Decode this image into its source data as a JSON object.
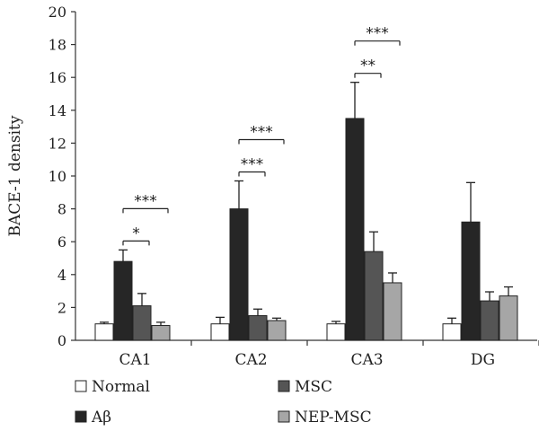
{
  "chart_data": {
    "type": "bar",
    "ylabel": "BACE-1 density",
    "ylim": [
      0,
      20
    ],
    "yticks": [
      0,
      2,
      4,
      6,
      8,
      10,
      12,
      14,
      16,
      18,
      20
    ],
    "categories": [
      "CA1",
      "CA2",
      "CA3",
      "DG"
    ],
    "series": [
      {
        "name": "Normal",
        "color": "#ffffff",
        "values": [
          1.0,
          1.0,
          1.0,
          1.0
        ],
        "errors": [
          0.1,
          0.4,
          0.15,
          0.35
        ]
      },
      {
        "name": "Aβ",
        "color": "#262626",
        "values": [
          4.8,
          8.0,
          13.5,
          7.2
        ],
        "errors": [
          0.7,
          1.7,
          2.2,
          2.4
        ]
      },
      {
        "name": "MSC",
        "color": "#555555",
        "values": [
          2.1,
          1.5,
          5.4,
          2.4
        ],
        "errors": [
          0.75,
          0.4,
          1.2,
          0.55
        ]
      },
      {
        "name": "NEP-MSC",
        "color": "#a6a6a6",
        "values": [
          0.9,
          1.2,
          3.5,
          2.7
        ],
        "errors": [
          0.2,
          0.15,
          0.6,
          0.55
        ]
      }
    ],
    "significance": [
      {
        "category": 0,
        "from": 1,
        "to": 2,
        "label": "*"
      },
      {
        "category": 0,
        "from": 1,
        "to": 3,
        "label": "***"
      },
      {
        "category": 1,
        "from": 1,
        "to": 2,
        "label": "***"
      },
      {
        "category": 1,
        "from": 1,
        "to": 3,
        "label": "***"
      },
      {
        "category": 2,
        "from": 1,
        "to": 2,
        "label": "**"
      },
      {
        "category": 2,
        "from": 1,
        "to": 3,
        "label": "***"
      }
    ],
    "legend": {
      "placement": "bottom"
    }
  }
}
